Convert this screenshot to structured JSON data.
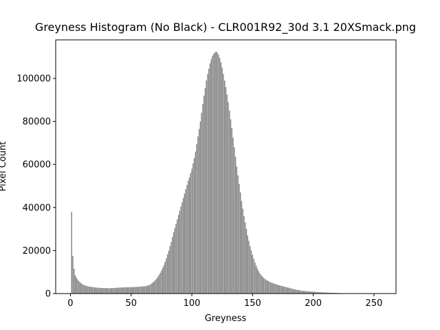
{
  "chart_data": {
    "type": "bar",
    "title": "Greyness Histogram (No Black) - CLR001R92_30d 3.1 20XSmack.png",
    "x_label": "Greyness",
    "y_label": "Pixel Count",
    "color": "#808080",
    "xlim": [
      -12.14,
      268.14
    ],
    "ylim": [
      0,
      117900
    ],
    "xticks": [
      0,
      50,
      100,
      150,
      200,
      250
    ],
    "yticks": [
      0,
      20000,
      40000,
      60000,
      80000,
      100000
    ],
    "x": [
      1,
      2,
      3,
      4,
      5,
      6,
      7,
      8,
      9,
      10,
      11,
      12,
      13,
      14,
      15,
      16,
      17,
      18,
      19,
      20,
      21,
      22,
      23,
      24,
      25,
      26,
      27,
      28,
      29,
      30,
      31,
      32,
      33,
      34,
      35,
      36,
      37,
      38,
      39,
      40,
      41,
      42,
      43,
      44,
      45,
      46,
      47,
      48,
      49,
      50,
      51,
      52,
      53,
      54,
      55,
      56,
      57,
      58,
      59,
      60,
      61,
      62,
      63,
      64,
      65,
      66,
      67,
      68,
      69,
      70,
      71,
      72,
      73,
      74,
      75,
      76,
      77,
      78,
      79,
      80,
      81,
      82,
      83,
      84,
      85,
      86,
      87,
      88,
      89,
      90,
      91,
      92,
      93,
      94,
      95,
      96,
      97,
      98,
      99,
      100,
      101,
      102,
      103,
      104,
      105,
      106,
      107,
      108,
      109,
      110,
      111,
      112,
      113,
      114,
      115,
      116,
      117,
      118,
      119,
      120,
      121,
      122,
      123,
      124,
      125,
      126,
      127,
      128,
      129,
      130,
      131,
      132,
      133,
      134,
      135,
      136,
      137,
      138,
      139,
      140,
      141,
      142,
      143,
      144,
      145,
      146,
      147,
      148,
      149,
      150,
      151,
      152,
      153,
      154,
      155,
      156,
      157,
      158,
      159,
      160,
      161,
      162,
      163,
      164,
      165,
      166,
      167,
      168,
      169,
      170,
      171,
      172,
      173,
      174,
      175,
      176,
      177,
      178,
      179,
      180,
      181,
      182,
      183,
      184,
      185,
      186,
      187,
      188,
      189,
      190,
      191,
      192,
      193,
      194,
      195,
      196,
      197,
      198,
      199,
      200,
      201,
      202,
      203,
      204,
      205,
      206,
      207,
      208,
      209,
      210,
      211,
      212,
      213,
      214,
      215,
      216,
      217,
      218,
      219,
      220,
      221,
      222,
      223,
      224,
      225,
      226,
      227,
      228,
      229,
      230,
      231,
      232,
      233,
      234,
      235,
      236,
      237,
      238,
      239,
      240,
      241,
      242,
      243,
      244,
      245,
      246,
      247,
      248,
      249,
      250,
      251,
      252,
      253,
      254,
      255
    ],
    "values": [
      38000,
      17500,
      11500,
      8500,
      7500,
      6500,
      5800,
      5200,
      4700,
      4300,
      4000,
      3800,
      3600,
      3400,
      3300,
      3200,
      3100,
      3000,
      2950,
      2900,
      2800,
      2750,
      2700,
      2650,
      2600,
      2600,
      2550,
      2550,
      2500,
      2500,
      2500,
      2450,
      2500,
      2500,
      2550,
      2600,
      2650,
      2700,
      2700,
      2750,
      2800,
      2800,
      2850,
      2850,
      2900,
      2900,
      2950,
      2950,
      3000,
      3000,
      3000,
      3050,
      3050,
      3100,
      3100,
      3150,
      3200,
      3250,
      3300,
      3350,
      3400,
      3500,
      3600,
      3800,
      4000,
      4300,
      4700,
      5200,
      5700,
      6300,
      7000,
      7800,
      8700,
      9700,
      10800,
      12000,
      13300,
      14800,
      16400,
      18200,
      20000,
      22000,
      24000,
      26200,
      28500,
      30500,
      32500,
      34500,
      36500,
      38500,
      40500,
      42500,
      44500,
      46500,
      48500,
      50500,
      52500,
      54000,
      56000,
      58000,
      60500,
      63000,
      66000,
      69500,
      73000,
      76500,
      80000,
      84000,
      88000,
      92000,
      95500,
      99000,
      102000,
      104500,
      107000,
      109000,
      110500,
      111500,
      112000,
      112500,
      112000,
      111000,
      109500,
      107500,
      105000,
      102000,
      99000,
      96000,
      92500,
      89000,
      85000,
      81000,
      77000,
      72500,
      68000,
      63500,
      59000,
      55000,
      51000,
      47000,
      43000,
      39500,
      36000,
      33000,
      30000,
      27000,
      24500,
      22000,
      20000,
      18000,
      16200,
      14500,
      13000,
      11700,
      10500,
      9500,
      8700,
      8000,
      7400,
      6900,
      6500,
      6100,
      5800,
      5500,
      5200,
      5000,
      4800,
      4600,
      4400,
      4200,
      4000,
      3850,
      3700,
      3550,
      3400,
      3250,
      3100,
      2950,
      2800,
      2650,
      2500,
      2350,
      2200,
      2050,
      1900,
      1800,
      1700,
      1600,
      1500,
      1400,
      1300,
      1250,
      1200,
      1150,
      1100,
      1050,
      1000,
      950,
      900,
      850,
      800,
      760,
      720,
      680,
      640,
      600,
      570,
      540,
      510,
      480,
      450,
      420,
      400,
      380,
      360,
      340,
      320,
      300,
      280,
      260,
      240,
      220,
      200,
      190,
      180,
      170,
      160,
      150,
      140,
      130,
      120,
      110,
      100,
      90,
      80,
      70,
      60,
      55,
      50,
      45,
      40,
      36,
      32,
      28,
      25,
      22,
      20,
      18,
      16,
      14,
      12,
      10,
      8,
      6,
      4
    ]
  }
}
